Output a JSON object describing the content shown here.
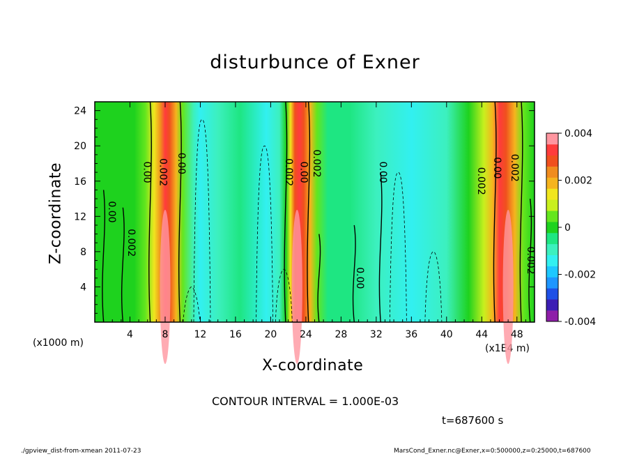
{
  "chart_data": {
    "type": "heatmap",
    "title": "disturbunce of Exner",
    "xlabel": "X-coordinate",
    "ylabel": "Z-coordinate",
    "x_unit_left": "(x1000 m)",
    "x_unit_right": "(x1E4 m)",
    "xlim": [
      0,
      50
    ],
    "ylim": [
      0,
      25
    ],
    "x_ticks": [
      4,
      8,
      12,
      16,
      20,
      24,
      28,
      32,
      36,
      40,
      44,
      48
    ],
    "y_ticks": [
      4,
      8,
      12,
      16,
      20,
      24
    ],
    "colorbar": {
      "min": -0.004,
      "max": 0.004,
      "tick_labels": [
        "0.004",
        "0.002",
        "0",
        "-0.002",
        "-0.004"
      ],
      "colors": [
        "#8e1ea8",
        "#3c1eb4",
        "#1e50e6",
        "#1e96ff",
        "#1ec8ff",
        "#32f0f0",
        "#3cf0be",
        "#1ee682",
        "#1ed21e",
        "#64e61e",
        "#c8f01e",
        "#f0e61e",
        "#f5b41e",
        "#f08c1e",
        "#f0501e",
        "#ff3c3c",
        "#ff96a0"
      ]
    },
    "contour_interval": "CONTOUR INTERVAL = 1.000E-03",
    "contour_labels": [
      "0.00",
      "0.002",
      "0.00",
      "0.002",
      "0.00",
      "0.002"
    ],
    "positive_bands_x": [
      8,
      23,
      47
    ],
    "negative_bands_x": [
      12,
      20,
      32,
      36,
      40
    ],
    "time_label": "t=687600 s"
  },
  "footer": {
    "left": "./gpview_dist-from-xmean  2011-07-23",
    "right": "MarsCond_Exner.nc@Exner,x=0:500000,z=0:25000,t=687600"
  }
}
